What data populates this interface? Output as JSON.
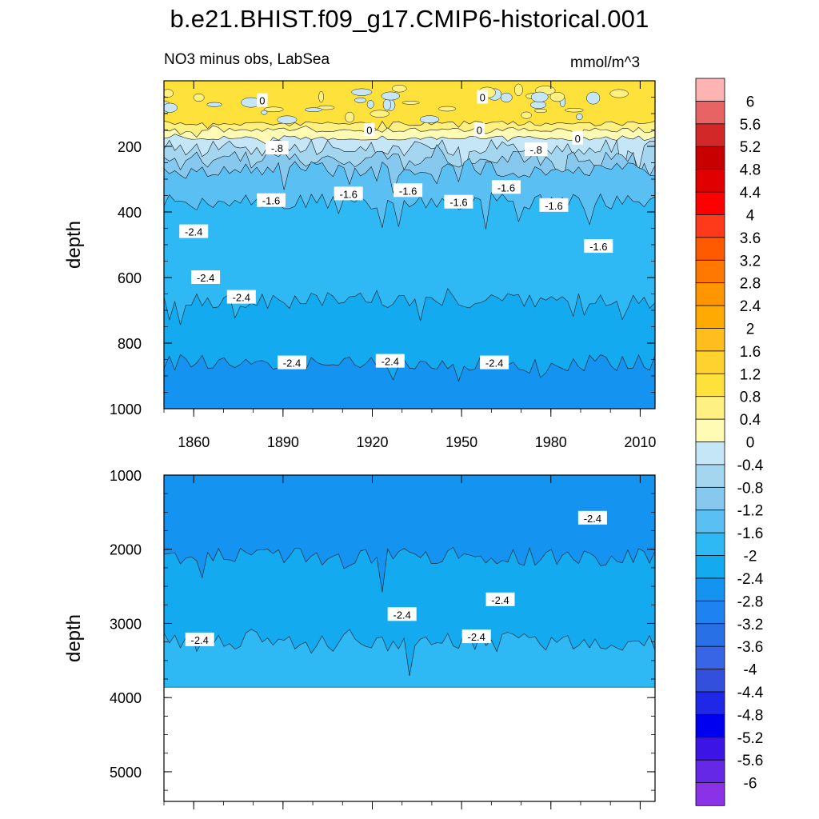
{
  "header": {
    "title": "b.e21.BHIST.f09_g17.CMIP6-historical.001",
    "subtitle": "NO3 minus obs, LabSea",
    "units": "mmol/m^3"
  },
  "chart_data": {
    "type": "heatmap",
    "title": "b.e21.BHIST.f09_g17.CMIP6-historical.001",
    "subtitle": "NO3 minus obs, LabSea",
    "units": "mmol/m^3",
    "x": {
      "label": "",
      "range": [
        1850,
        2015
      ],
      "ticks": [
        1860,
        1890,
        1920,
        1950,
        1980,
        2010
      ],
      "tick_labels": [
        "1860",
        "1890",
        "1920",
        "1950",
        "1980",
        "2010"
      ]
    },
    "panels": [
      {
        "name": "upper",
        "ylabel": "depth",
        "yrange": [
          0,
          1000
        ],
        "yticks": [
          200,
          400,
          600,
          800,
          1000
        ],
        "ytick_labels": [
          "200",
          "400",
          "600",
          "800",
          "1000"
        ],
        "profile": [
          {
            "depth": 0,
            "value": 0.8
          },
          {
            "depth": 130,
            "value": 0.4
          },
          {
            "depth": 150,
            "value": 0.0
          },
          {
            "depth": 175,
            "value": -0.4
          },
          {
            "depth": 205,
            "value": -0.8
          },
          {
            "depth": 240,
            "value": -1.2
          },
          {
            "depth": 270,
            "value": -1.6
          },
          {
            "depth": 370,
            "value": -2.0
          },
          {
            "depth": 670,
            "value": -2.4
          },
          {
            "depth": 860,
            "value": -2.8
          }
        ],
        "contour_labels": [
          {
            "text": "0",
            "year": 1883,
            "depth": 60
          },
          {
            "text": "0",
            "year": 1957,
            "depth": 50
          },
          {
            "text": "0",
            "year": 1919,
            "depth": 150
          },
          {
            "text": "0",
            "year": 1956,
            "depth": 150
          },
          {
            "text": "0",
            "year": 1989,
            "depth": 175
          },
          {
            "text": "-.8",
            "year": 1888,
            "depth": 205
          },
          {
            "text": "-.8",
            "year": 1975,
            "depth": 210
          },
          {
            "text": "-1.6",
            "year": 1886,
            "depth": 365
          },
          {
            "text": "-1.6",
            "year": 1912,
            "depth": 345
          },
          {
            "text": "-1.6",
            "year": 1932,
            "depth": 335
          },
          {
            "text": "-1.6",
            "year": 1949,
            "depth": 370
          },
          {
            "text": "-1.6",
            "year": 1965,
            "depth": 325
          },
          {
            "text": "-1.6",
            "year": 1981,
            "depth": 380
          },
          {
            "text": "-1.6",
            "year": 1996,
            "depth": 505
          },
          {
            "text": "-2.4",
            "year": 1860,
            "depth": 460
          },
          {
            "text": "-2.4",
            "year": 1864,
            "depth": 600
          },
          {
            "text": "-2.4",
            "year": 1876,
            "depth": 660
          },
          {
            "text": "-2.4",
            "year": 1893,
            "depth": 860
          },
          {
            "text": "-2.4",
            "year": 1926,
            "depth": 855
          },
          {
            "text": "-2.4",
            "year": 1961,
            "depth": 860
          }
        ]
      },
      {
        "name": "lower",
        "ylabel": "depth",
        "yrange": [
          1000,
          5400
        ],
        "yticks": [
          1000,
          2000,
          3000,
          4000,
          5000
        ],
        "ytick_labels": [
          "1000",
          "2000",
          "3000",
          "4000",
          "5000"
        ],
        "data_bottom_depth": 3860,
        "profile": [
          {
            "depth": 1000,
            "value": -2.8
          },
          {
            "depth": 2100,
            "value": -2.4
          },
          {
            "depth": 3250,
            "value": -2.0
          }
        ],
        "contour_labels": [
          {
            "text": "-2.4",
            "year": 1994,
            "depth": 1580
          },
          {
            "text": "-2.4",
            "year": 1930,
            "depth": 2880
          },
          {
            "text": "-2.4",
            "year": 1963,
            "depth": 2680
          },
          {
            "text": "-2.4",
            "year": 1955,
            "depth": 3180
          },
          {
            "text": "-2.4",
            "year": 1862,
            "depth": 3220
          }
        ]
      }
    ],
    "colorbar": {
      "labels": [
        "6",
        "5.6",
        "5.2",
        "4.8",
        "4.4",
        "4",
        "3.6",
        "3.2",
        "2.8",
        "2.4",
        "2",
        "1.6",
        "1.2",
        "0.8",
        "0.4",
        "0",
        "-0.4",
        "-0.8",
        "-1.2",
        "-1.6",
        "-2",
        "-2.4",
        "-2.8",
        "-3.2",
        "-3.6",
        "-4",
        "-4.4",
        "-4.8",
        "-5.2",
        "-5.6",
        "-6"
      ],
      "colors": [
        "#ffb4b4",
        "#e86464",
        "#d22828",
        "#c80000",
        "#e10000",
        "#ff0000",
        "#ff3a1a",
        "#ff5a00",
        "#ff7800",
        "#ff9600",
        "#ffaa00",
        "#ffbe1e",
        "#ffd22d",
        "#ffe13c",
        "#fff082",
        "#fffab4",
        "#c4e6f6",
        "#a5d6f0",
        "#87c8ee",
        "#5ac0f4",
        "#2eb9f5",
        "#14aaf0",
        "#1493f0",
        "#1e82f0",
        "#2870e6",
        "#3864e6",
        "#3250dc",
        "#1e28e6",
        "#0000f0",
        "#3c14e6",
        "#6428e6",
        "#8c32e6"
      ]
    }
  }
}
